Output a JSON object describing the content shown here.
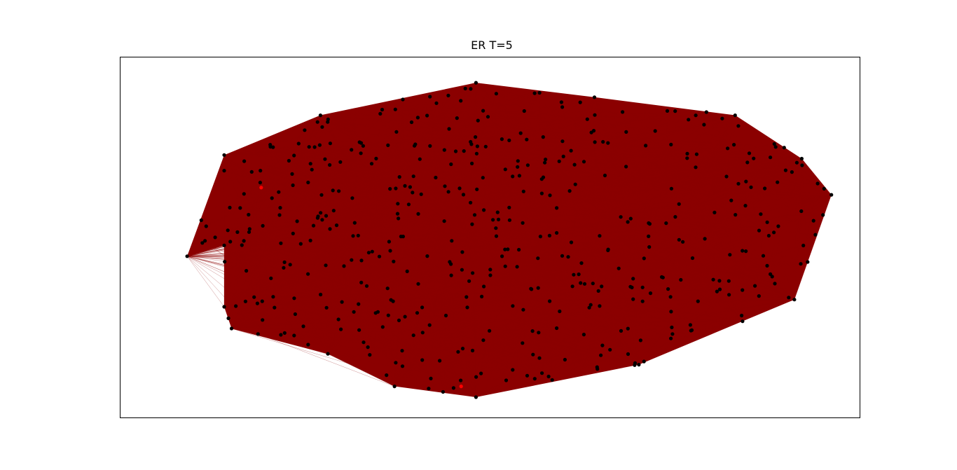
{
  "title": "ER T=5",
  "chart_data": {
    "type": "network",
    "title": "ER T=5",
    "xlabel": "",
    "ylabel": "",
    "axes_ticks": "none",
    "grid": false,
    "legend": "none",
    "edge_color": "#8b0000",
    "node_color": "#000000",
    "highlight_node_color": "#ff0000",
    "nodes": {
      "hull": [
        [
          0.09,
          0.55
        ],
        [
          0.14,
          0.27
        ],
        [
          0.27,
          0.16
        ],
        [
          0.48,
          0.07
        ],
        [
          0.64,
          0.11
        ],
        [
          0.83,
          0.16
        ],
        [
          0.92,
          0.28
        ],
        [
          0.96,
          0.38
        ],
        [
          0.91,
          0.67
        ],
        [
          0.84,
          0.73
        ],
        [
          0.7,
          0.85
        ],
        [
          0.48,
          0.94
        ],
        [
          0.37,
          0.91
        ],
        [
          0.28,
          0.82
        ],
        [
          0.15,
          0.75
        ],
        [
          0.14,
          0.69
        ],
        [
          0.14,
          0.52
        ]
      ],
      "highlight": [
        [
          0.19,
          0.36
        ],
        [
          0.46,
          0.91
        ]
      ],
      "interior_count": 460
    }
  }
}
